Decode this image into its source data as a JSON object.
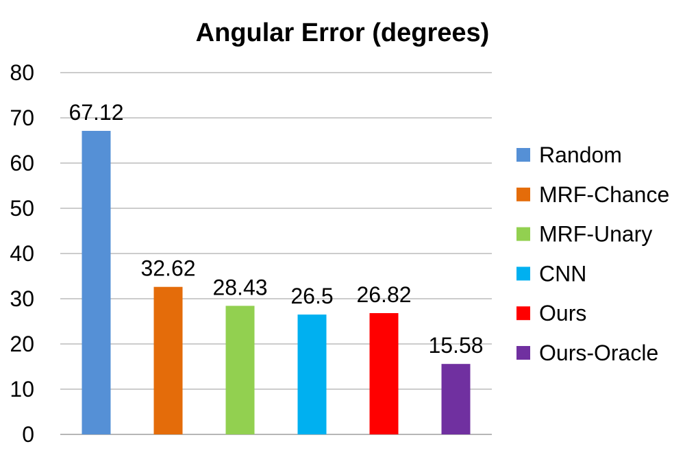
{
  "chart_data": {
    "type": "bar",
    "title": "Angular Error (degrees)",
    "xlabel": "",
    "ylabel": "",
    "ylim": [
      0,
      80
    ],
    "yticks": [
      "0",
      "10",
      "20",
      "30",
      "40",
      "50",
      "60",
      "70",
      "80"
    ],
    "grid": true,
    "legend_position": "right",
    "series": [
      {
        "name": "Random",
        "value": 67.12,
        "label": "67.12",
        "color": "#5590d6"
      },
      {
        "name": "MRF-Chance",
        "value": 32.62,
        "label": "32.62",
        "color": "#e46c0a"
      },
      {
        "name": "MRF-Unary",
        "value": 28.43,
        "label": "28.43",
        "color": "#92d050"
      },
      {
        "name": "CNN",
        "value": 26.5,
        "label": "26.5",
        "color": "#00b0f0"
      },
      {
        "name": "Ours",
        "value": 26.82,
        "label": "26.82",
        "color": "#ff0000"
      },
      {
        "name": "Ours-Oracle",
        "value": 15.58,
        "label": "15.58",
        "color": "#7030a0"
      }
    ]
  }
}
